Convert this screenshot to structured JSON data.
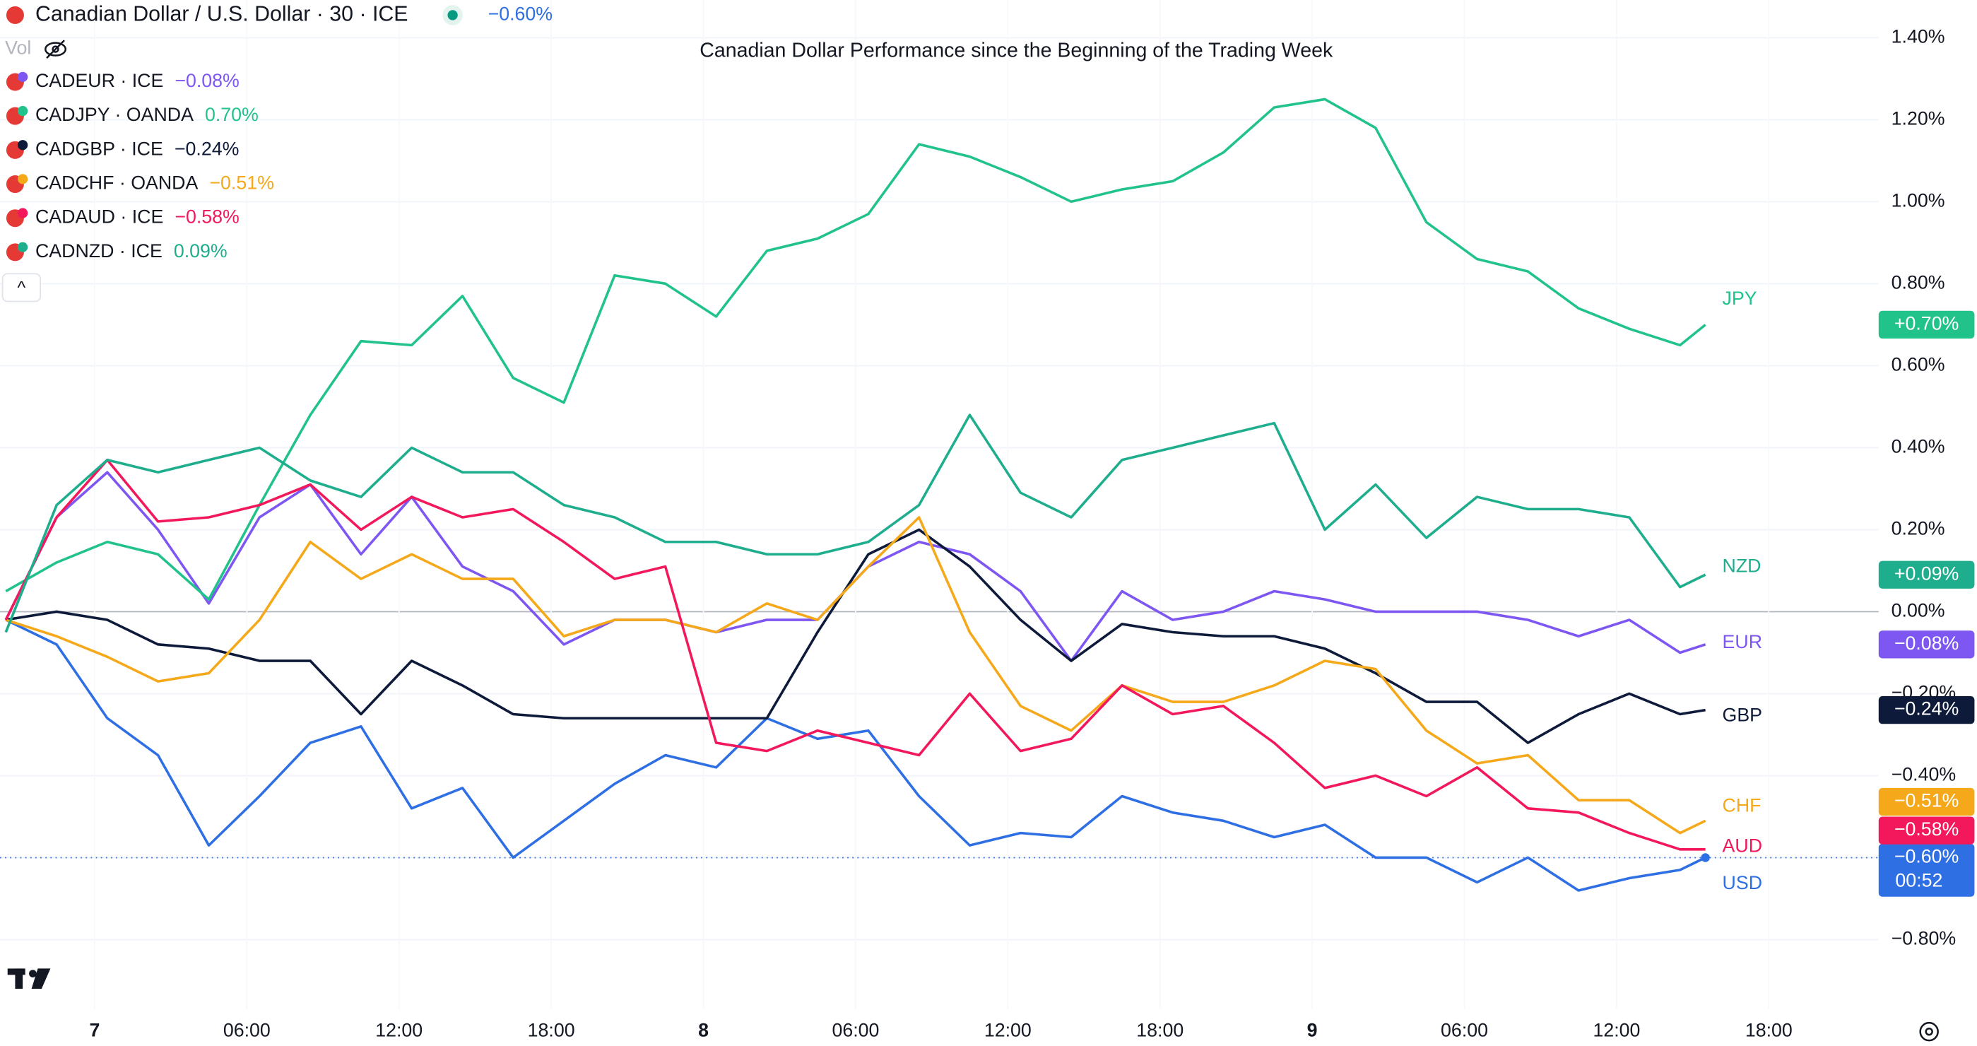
{
  "header": {
    "symbol": "Canadian Dollar / U.S. Dollar · 30 · ICE",
    "change": "−0.60%",
    "vol": "Vol",
    "countdown": "00:52",
    "collapse": "^"
  },
  "chart_data": {
    "type": "line",
    "title": "Canadian Dollar Performance since the Beginning of the Trading Week",
    "legend": "top-left",
    "grid": true,
    "x": [
      -3.5,
      -1.5,
      0.5,
      2.5,
      4.5,
      6.5,
      8.5,
      10.5,
      12.5,
      14.5,
      16.5,
      18.5,
      20.5,
      22.5,
      24.5,
      26.5,
      28.5,
      30.5,
      32.5,
      34.5,
      36.5,
      38.5,
      40.5,
      42.5,
      44.5,
      46.5,
      48.5,
      50.5,
      52.5,
      54.5,
      56.5,
      58.5,
      60.5,
      62.5,
      63.5
    ],
    "xlim": [
      -3.73,
      70.33
    ],
    "xticks": [
      {
        "value": 0,
        "label": "7"
      },
      {
        "value": 6,
        "label": "06:00"
      },
      {
        "value": 12,
        "label": "12:00"
      },
      {
        "value": 18,
        "label": "18:00"
      },
      {
        "value": 24,
        "label": "8"
      },
      {
        "value": 30,
        "label": "06:00"
      },
      {
        "value": 36,
        "label": "12:00"
      },
      {
        "value": 42,
        "label": "18:00"
      },
      {
        "value": 48,
        "label": "9"
      },
      {
        "value": 54,
        "label": "06:00"
      },
      {
        "value": 60,
        "label": "12:00"
      },
      {
        "value": 66,
        "label": "18:00"
      }
    ],
    "ylim": [
      -0.969,
      1.492
    ],
    "yticks": [
      {
        "value": 1.4,
        "label": "1.40%"
      },
      {
        "value": 1.2,
        "label": "1.20%"
      },
      {
        "value": 1.0,
        "label": "1.00%"
      },
      {
        "value": 0.8,
        "label": "0.80%"
      },
      {
        "value": 0.6,
        "label": "0.60%"
      },
      {
        "value": 0.4,
        "label": "0.40%"
      },
      {
        "value": 0.2,
        "label": "0.20%"
      },
      {
        "value": 0,
        "label": "0.00%"
      },
      {
        "value": -0.2,
        "label": "−0.20%"
      },
      {
        "value": -0.4,
        "label": "−0.40%"
      },
      {
        "value": -0.6,
        "label": "−0.60%"
      },
      {
        "value": -0.8,
        "label": "−0.80%"
      }
    ],
    "series": [
      {
        "name": "USD",
        "color": "#2f6fe4",
        "badge": "−0.60%",
        "values": [
          -0.02,
          -0.08,
          -0.26,
          -0.35,
          -0.57,
          -0.45,
          -0.32,
          -0.28,
          -0.48,
          -0.43,
          -0.6,
          -0.51,
          -0.42,
          -0.35,
          -0.38,
          -0.26,
          -0.31,
          -0.29,
          -0.45,
          -0.57,
          -0.54,
          -0.55,
          -0.45,
          -0.49,
          -0.51,
          -0.55,
          -0.52,
          -0.6,
          -0.6,
          -0.66,
          -0.6,
          -0.68,
          -0.65,
          -0.63,
          -0.6
        ]
      },
      {
        "name": "EUR",
        "symbol": "CADEUR · ICE",
        "change": "−0.08%",
        "color": "#7e57f2",
        "badge": "−0.08%",
        "values": [
          -0.02,
          0.23,
          0.34,
          0.2,
          0.02,
          0.23,
          0.31,
          0.14,
          0.28,
          0.11,
          0.05,
          -0.08,
          -0.02,
          -0.02,
          -0.05,
          -0.02,
          -0.02,
          0.11,
          0.17,
          0.14,
          0.05,
          -0.12,
          0.05,
          -0.02,
          0.0,
          0.05,
          0.03,
          0.0,
          0.0,
          0.0,
          -0.02,
          -0.06,
          -0.02,
          -0.1,
          -0.08
        ]
      },
      {
        "name": "JPY",
        "symbol": "CADJPY · OANDA",
        "change": "0.70%",
        "color": "#22c38b",
        "badge": "+0.70%",
        "values": [
          0.05,
          0.12,
          0.17,
          0.14,
          0.03,
          0.26,
          0.48,
          0.66,
          0.65,
          0.77,
          0.57,
          0.51,
          0.82,
          0.8,
          0.72,
          0.88,
          0.91,
          0.97,
          1.14,
          1.11,
          1.06,
          1.0,
          1.03,
          1.05,
          1.12,
          1.23,
          1.25,
          1.18,
          0.95,
          0.86,
          0.83,
          0.74,
          0.69,
          0.65,
          0.7
        ]
      },
      {
        "name": "GBP",
        "symbol": "CADGBP · ICE",
        "change": "−0.24%",
        "color": "#0d1a3a",
        "badge": "−0.24%",
        "values": [
          -0.02,
          0.0,
          -0.02,
          -0.08,
          -0.09,
          -0.12,
          -0.12,
          -0.25,
          -0.12,
          -0.18,
          -0.25,
          -0.26,
          -0.26,
          -0.26,
          -0.26,
          -0.26,
          -0.05,
          0.14,
          0.2,
          0.11,
          -0.02,
          -0.12,
          -0.03,
          -0.05,
          -0.06,
          -0.06,
          -0.09,
          -0.15,
          -0.22,
          -0.22,
          -0.32,
          -0.25,
          -0.2,
          -0.25,
          -0.24
        ]
      },
      {
        "name": "CHF",
        "symbol": "CADCHF · OANDA",
        "change": "−0.51%",
        "color": "#f5a91a",
        "badge": "−0.51%",
        "values": [
          -0.02,
          -0.06,
          -0.11,
          -0.17,
          -0.15,
          -0.02,
          0.17,
          0.08,
          0.14,
          0.08,
          0.08,
          -0.06,
          -0.02,
          -0.02,
          -0.05,
          0.02,
          -0.02,
          0.11,
          0.23,
          -0.05,
          -0.23,
          -0.29,
          -0.18,
          -0.22,
          -0.22,
          -0.18,
          -0.12,
          -0.14,
          -0.29,
          -0.37,
          -0.35,
          -0.46,
          -0.46,
          -0.54,
          -0.51
        ]
      },
      {
        "name": "AUD",
        "symbol": "CADAUD · ICE",
        "change": "−0.58%",
        "color": "#f2185b",
        "badge": "−0.58%",
        "values": [
          -0.02,
          0.23,
          0.37,
          0.22,
          0.23,
          0.26,
          0.31,
          0.2,
          0.28,
          0.23,
          0.25,
          0.17,
          0.08,
          0.11,
          -0.32,
          -0.34,
          -0.29,
          -0.32,
          -0.35,
          -0.2,
          -0.34,
          -0.31,
          -0.18,
          -0.25,
          -0.23,
          -0.32,
          -0.43,
          -0.4,
          -0.45,
          -0.38,
          -0.48,
          -0.49,
          -0.54,
          -0.58,
          -0.58
        ]
      },
      {
        "name": "NZD",
        "symbol": "CADNZD · ICE",
        "change": "0.09%",
        "color": "#1eae8e",
        "badge": "+0.09%",
        "values": [
          -0.05,
          0.26,
          0.37,
          0.34,
          0.37,
          0.4,
          0.32,
          0.28,
          0.4,
          0.34,
          0.34,
          0.26,
          0.23,
          0.17,
          0.17,
          0.14,
          0.14,
          0.17,
          0.26,
          0.48,
          0.29,
          0.23,
          0.37,
          0.4,
          0.43,
          0.46,
          0.2,
          0.31,
          0.18,
          0.28,
          0.25,
          0.25,
          0.23,
          0.06,
          0.09
        ]
      }
    ]
  }
}
